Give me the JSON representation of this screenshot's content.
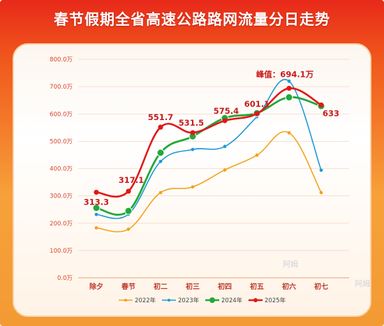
{
  "title": "春节假期全省高速公路路网流量分日走势",
  "watermark": "阿姆",
  "chart_data": {
    "type": "line",
    "title": "春节假期全省高速公路路网流量分日走势",
    "categories": [
      "除夕",
      "春节",
      "初二",
      "初三",
      "初四",
      "初五",
      "初六",
      "初七"
    ],
    "ylim": [
      0,
      800
    ],
    "yticks": [
      0,
      100,
      200,
      300,
      400,
      500,
      600,
      700,
      800
    ],
    "ytick_labels": [
      "0.0万",
      "100.0万",
      "200.0万",
      "300.0万",
      "400.0万",
      "500.0万",
      "600.0万",
      "700.0万",
      "800.0万"
    ],
    "grid": true,
    "legend_position": "bottom",
    "series": [
      {
        "name": "2022年",
        "color": "#f3a21c",
        "values": [
          183,
          178,
          312,
          333,
          395,
          449,
          531,
          312
        ]
      },
      {
        "name": "2023年",
        "color": "#1f9ad6",
        "values": [
          232,
          233,
          426,
          470,
          481,
          590,
          720,
          394
        ]
      },
      {
        "name": "2024年",
        "color": "#22a83a",
        "values": [
          256,
          245,
          458,
          518,
          585,
          603,
          661,
          629
        ]
      },
      {
        "name": "2025年",
        "color": "#e01818",
        "values": [
          313.3,
          317.1,
          551.7,
          531.5,
          575.4,
          601.1,
          694.1,
          633
        ]
      }
    ],
    "annotations": [
      {
        "series": "2025年",
        "index": 0,
        "text": "313.3"
      },
      {
        "series": "2025年",
        "index": 1,
        "text": "317.1"
      },
      {
        "series": "2025年",
        "index": 2,
        "text": "551.7"
      },
      {
        "series": "2025年",
        "index": 3,
        "text": "531.5"
      },
      {
        "series": "2025年",
        "index": 4,
        "text": "575.4"
      },
      {
        "series": "2025年",
        "index": 5,
        "text": "601.1"
      },
      {
        "series": "2025年",
        "index": 6,
        "text": "峰值：694.1万"
      },
      {
        "series": "2025年",
        "index": 7,
        "text": "633"
      }
    ]
  }
}
